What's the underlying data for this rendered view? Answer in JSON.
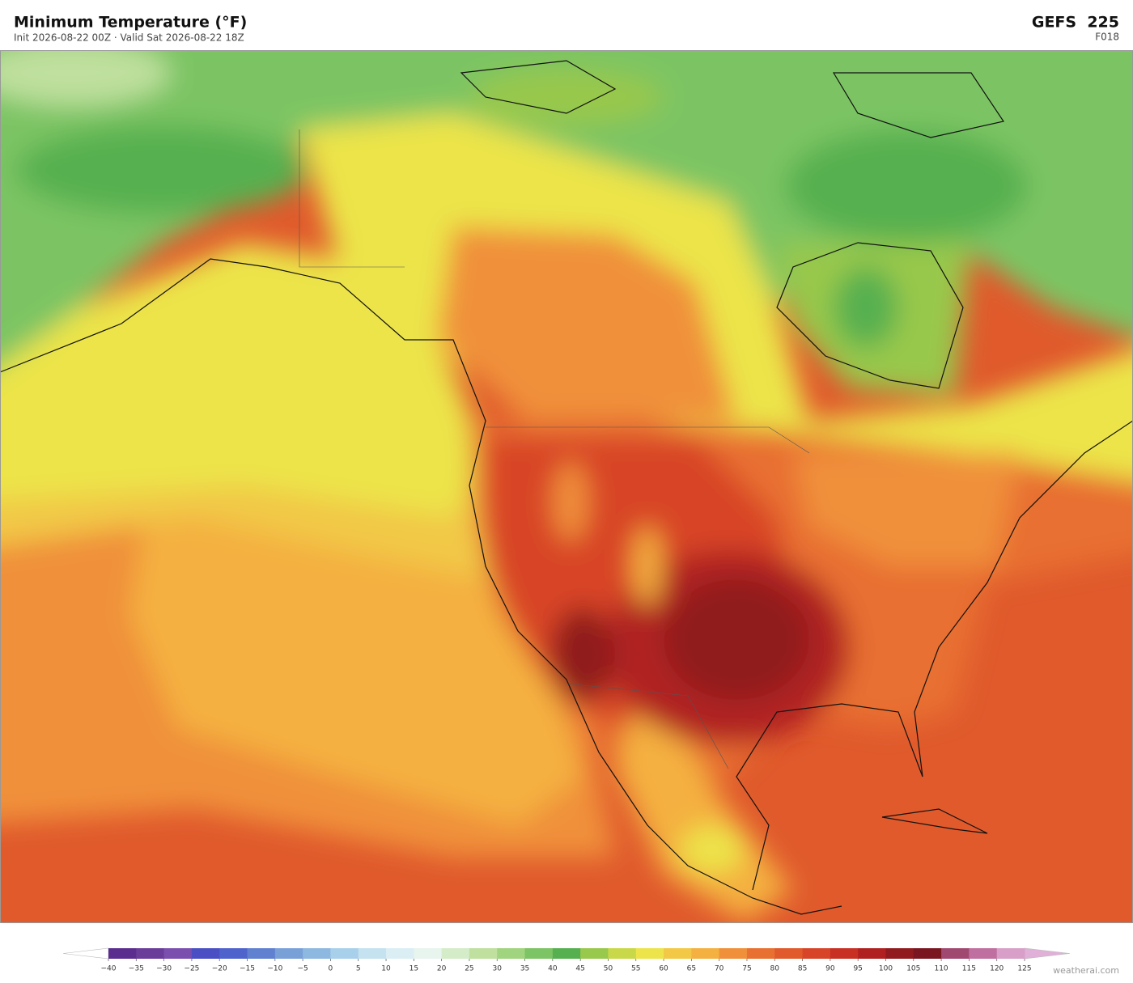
{
  "header": {
    "title": "Minimum Temperature  (°F)",
    "subtitle": "Init 2026-08-22 00Z  ·  Valid Sat 2026-08-22 18Z",
    "model": "GEFS  225",
    "forecast_hour": "F018"
  },
  "colorbar": {
    "ticks": [
      {
        "value": -40,
        "label": "−40"
      },
      {
        "value": -35,
        "label": "−35"
      },
      {
        "value": -30,
        "label": "−30"
      },
      {
        "value": -25,
        "label": "−25"
      },
      {
        "value": -20,
        "label": "−20"
      },
      {
        "value": -15,
        "label": "−15"
      },
      {
        "value": -10,
        "label": "−10"
      },
      {
        "value": -5,
        "label": "−5"
      },
      0,
      5,
      10,
      15,
      20,
      25,
      30,
      35,
      40,
      45,
      50,
      55,
      60,
      65,
      70,
      75,
      80,
      85,
      90,
      95,
      100,
      105,
      110,
      115,
      120,
      125
    ],
    "colors": [
      "#5b2d8e",
      "#6a3d9a",
      "#7b4fae",
      "#4a4fc4",
      "#4f63cc",
      "#6080d0",
      "#7aa0d8",
      "#8fb8e0",
      "#a8d0ea",
      "#c4e2f0",
      "#daeef4",
      "#e8f4ee",
      "#d4ecc8",
      "#bfe09e",
      "#a0d47e",
      "#7cc464",
      "#56b050",
      "#98c84c",
      "#c8d848",
      "#ece44a",
      "#f2c846",
      "#f4b040",
      "#f0903a",
      "#e87030",
      "#e05a2c",
      "#d84428",
      "#c83024",
      "#b02020",
      "#901a1e",
      "#7a1620",
      "#a04870",
      "#c070a0",
      "#d8a0c8"
    ],
    "extend_colors": [
      "#ffffff",
      "#e0b0d8"
    ]
  },
  "footer": {
    "watermark": "weatherai.com"
  }
}
